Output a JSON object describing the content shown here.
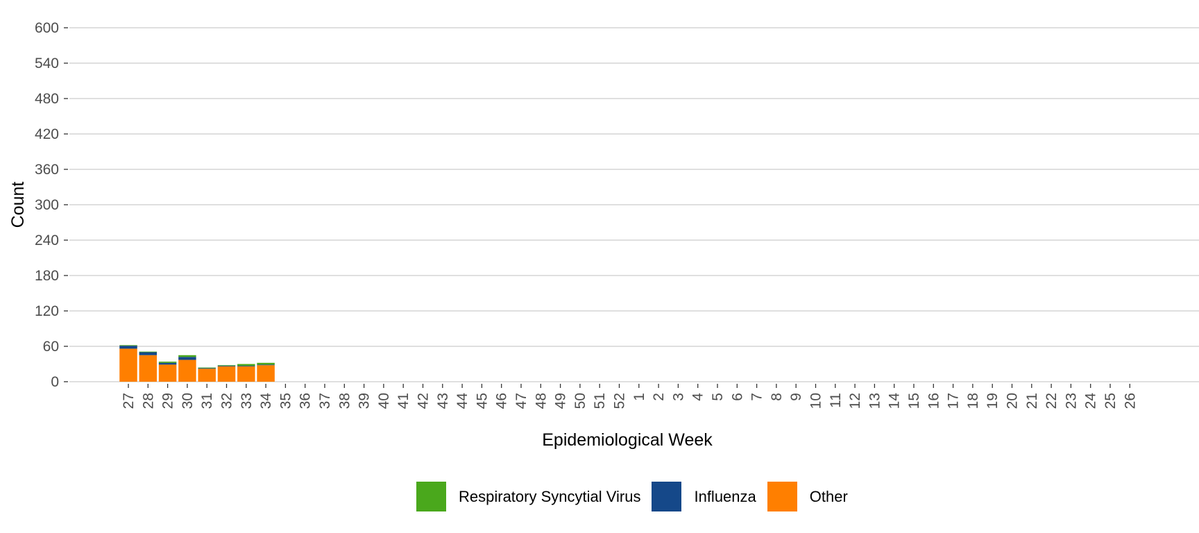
{
  "chart_data": {
    "type": "bar",
    "stacked": true,
    "title": "",
    "xlabel": "Epidemiological Week",
    "ylabel": "Count",
    "ylim": [
      0,
      600
    ],
    "yticks": [
      0,
      60,
      120,
      180,
      240,
      300,
      360,
      420,
      480,
      540,
      600
    ],
    "grid": true,
    "legend_position": "bottom",
    "categories": [
      "27",
      "28",
      "29",
      "30",
      "31",
      "32",
      "33",
      "34",
      "35",
      "36",
      "37",
      "38",
      "39",
      "40",
      "41",
      "42",
      "43",
      "44",
      "45",
      "46",
      "47",
      "48",
      "49",
      "50",
      "51",
      "52",
      "1",
      "2",
      "3",
      "4",
      "5",
      "6",
      "7",
      "8",
      "9",
      "10",
      "11",
      "12",
      "13",
      "14",
      "15",
      "16",
      "17",
      "18",
      "19",
      "20",
      "21",
      "22",
      "23",
      "24",
      "25",
      "26"
    ],
    "series": [
      {
        "name": "Other",
        "color": "#FF7F00",
        "values": [
          56,
          45,
          29,
          37,
          22,
          26,
          26,
          28,
          null,
          null,
          null,
          null,
          null,
          null,
          null,
          null,
          null,
          null,
          null,
          null,
          null,
          null,
          null,
          null,
          null,
          null,
          null,
          null,
          null,
          null,
          null,
          null,
          null,
          null,
          null,
          null,
          null,
          null,
          null,
          null,
          null,
          null,
          null,
          null,
          null,
          null,
          null,
          null,
          null,
          null,
          null,
          null
        ]
      },
      {
        "name": "Influenza",
        "color": "#154889",
        "values": [
          5,
          5,
          3,
          5,
          1,
          1,
          1,
          1,
          null,
          null,
          null,
          null,
          null,
          null,
          null,
          null,
          null,
          null,
          null,
          null,
          null,
          null,
          null,
          null,
          null,
          null,
          null,
          null,
          null,
          null,
          null,
          null,
          null,
          null,
          null,
          null,
          null,
          null,
          null,
          null,
          null,
          null,
          null,
          null,
          null,
          null,
          null,
          null,
          null,
          null,
          null,
          null
        ]
      },
      {
        "name": "Respiratory Syncytial Virus",
        "color": "#4AA81C",
        "values": [
          1,
          1,
          2,
          3,
          1,
          1,
          3,
          3,
          null,
          null,
          null,
          null,
          null,
          null,
          null,
          null,
          null,
          null,
          null,
          null,
          null,
          null,
          null,
          null,
          null,
          null,
          null,
          null,
          null,
          null,
          null,
          null,
          null,
          null,
          null,
          null,
          null,
          null,
          null,
          null,
          null,
          null,
          null,
          null,
          null,
          null,
          null,
          null,
          null,
          null,
          null,
          null
        ]
      }
    ]
  },
  "legend": {
    "items": [
      {
        "label": "Respiratory Syncytial Virus",
        "color": "#4AA81C"
      },
      {
        "label": "Influenza",
        "color": "#154889"
      },
      {
        "label": "Other",
        "color": "#FF7F00"
      }
    ]
  }
}
